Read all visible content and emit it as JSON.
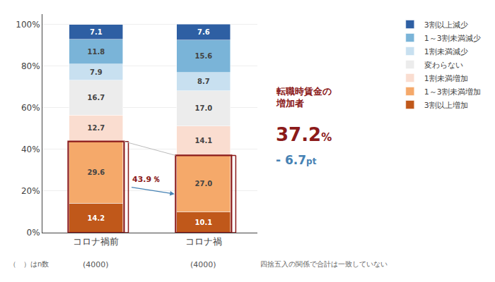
{
  "chart_data": {
    "type": "bar",
    "stacked": true,
    "categories": [
      "コロナ禍前",
      "コロナ禍"
    ],
    "series": [
      {
        "name": "3割以上減少",
        "color": "#2e5fa3",
        "values": [
          7.1,
          7.6
        ],
        "value_labels": [
          "7.1",
          "7.6"
        ]
      },
      {
        "name": "1～3割未満減少",
        "color": "#7ab4d8",
        "values": [
          11.8,
          15.6
        ],
        "value_labels": [
          "11.8",
          "15.6"
        ]
      },
      {
        "name": "1割未満減少",
        "color": "#c8e0f0",
        "values": [
          7.9,
          8.7
        ],
        "value_labels": [
          "7.9",
          "8.7"
        ]
      },
      {
        "name": "変わらない",
        "color": "#ececec",
        "values": [
          16.7,
          17.0
        ],
        "value_labels": [
          "16.7",
          "17.0"
        ]
      },
      {
        "name": "1割未満増加",
        "color": "#faddd0",
        "values": [
          12.7,
          14.1
        ],
        "value_labels": [
          "12.7",
          "14.1"
        ]
      },
      {
        "name": "1～3割未満増加",
        "color": "#f5a96a",
        "values": [
          29.6,
          27.0
        ],
        "value_labels": [
          "29.6",
          "27.0"
        ]
      },
      {
        "name": "3割以上増加",
        "color": "#c0581a",
        "values": [
          14.2,
          10.1
        ],
        "value_labels": [
          "14.2",
          "10.1"
        ]
      }
    ],
    "data_labels": true,
    "ylim": [
      0,
      105
    ],
    "yticks": [
      {
        "value": 0,
        "label": "0%"
      },
      {
        "value": 20,
        "label": "20%"
      },
      {
        "value": 40,
        "label": "40%"
      },
      {
        "value": 60,
        "label": "60%"
      },
      {
        "value": 80,
        "label": "80%"
      },
      {
        "value": 100,
        "label": "100%"
      }
    ],
    "grid": true,
    "legend": "upper right",
    "annotations": [
      {
        "text": "43.9 ％",
        "color": "#8b1a1a"
      },
      {
        "text": "転職時賃金の\n増加者",
        "color": "#8b1a1a"
      },
      {
        "text": "37.2",
        "color": "#8b1a1a"
      },
      {
        "text": "%",
        "color": "#8b1a1a"
      },
      {
        "text": "- 6.7",
        "color": "#4682b4"
      },
      {
        "text": "pt",
        "color": "#4682b4"
      },
      {
        "text": "（　）はn数",
        "color": "#666666"
      },
      {
        "text": "(4000)",
        "color": "#555555"
      },
      {
        "text": "(4000)",
        "color": "#555555"
      },
      {
        "text": "四捨五入の関係で合計は一致していない",
        "color": "#666666"
      }
    ]
  }
}
